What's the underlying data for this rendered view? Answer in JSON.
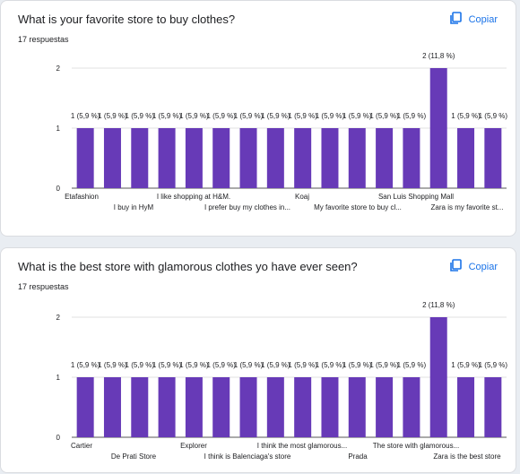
{
  "colors": {
    "bar": "#673ab7",
    "accent": "#1a73e8",
    "grid": "#e0e0e0"
  },
  "copy_icon": "copy-icon",
  "cards": [
    {
      "title": "What is your favorite store to buy clothes?",
      "count": "17 respuestas",
      "copy_label": "Copiar"
    },
    {
      "title": "What is the best store with glamorous clothes yo have ever seen?",
      "count": "17 respuestas",
      "copy_label": "Copiar"
    }
  ],
  "chart_data": [
    {
      "type": "bar",
      "ylim": [
        0,
        2
      ],
      "y_ticks": [
        "0",
        "1",
        "2"
      ],
      "values": [
        1,
        1,
        1,
        1,
        1,
        1,
        1,
        1,
        1,
        1,
        1,
        1,
        1,
        2,
        1,
        1
      ],
      "data_labels": [
        "1 (5,9 %)",
        "1 (5,9 %)",
        "1 (5,9 %)",
        "1 (5,9 %)",
        "1 (5,9 %)",
        "1 (5,9 %)",
        "1 (5,9 %)",
        "1 (5,9 %)",
        "1 (5,9 %)",
        "1 (5,9 %)",
        "1 (5,9 %)",
        "1 (5,9 %)",
        "1 (5,9 %)",
        "2 (11,8 %)",
        "1 (5,9 %)",
        "1 (5,9 %)"
      ],
      "category_labels_row1": [
        "Etafashion",
        "I like shopping at H&M.",
        "Koaj",
        "San Luis Shopping Mall"
      ],
      "category_labels_row2": [
        "I buy in HyM",
        "I prefer buy my clothes in...",
        "My favorite store to buy cl...",
        "Zara is my favorite st..."
      ]
    },
    {
      "type": "bar",
      "ylim": [
        0,
        2
      ],
      "y_ticks": [
        "0",
        "1",
        "2"
      ],
      "values": [
        1,
        1,
        1,
        1,
        1,
        1,
        1,
        1,
        1,
        1,
        1,
        1,
        1,
        2,
        1,
        1
      ],
      "data_labels": [
        "1 (5,9 %)",
        "1 (5,9 %)",
        "1 (5,9 %)",
        "1 (5,9 %)",
        "1 (5,9 %)",
        "1 (5,9 %)",
        "1 (5,9 %)",
        "1 (5,9 %)",
        "1 (5,9 %)",
        "1 (5,9 %)",
        "1 (5,9 %)",
        "1 (5,9 %)",
        "1 (5,9 %)",
        "2 (11,8 %)",
        "1 (5,9 %)",
        "1 (5,9 %)"
      ],
      "category_labels_row1": [
        "Cartier",
        "Explorer",
        "I think the most glamorous...",
        "The store with glamorous..."
      ],
      "category_labels_row2": [
        "De Prati Store",
        "I think is Balenciaga's store",
        "Prada",
        "Zara is the best store"
      ]
    }
  ]
}
